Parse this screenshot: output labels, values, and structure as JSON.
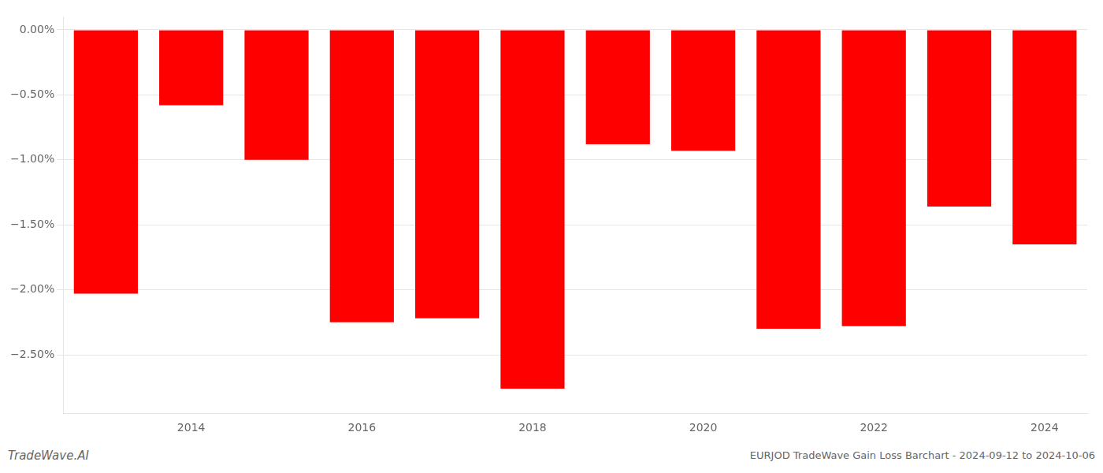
{
  "chart_data": {
    "type": "bar",
    "categories": [
      null,
      "2014",
      null,
      "2016",
      null,
      "2018",
      null,
      "2020",
      null,
      "2022",
      null,
      "2024"
    ],
    "values": [
      -2.03,
      -0.58,
      -1.0,
      -2.25,
      -2.22,
      -2.76,
      -0.88,
      -0.93,
      -2.3,
      -2.28,
      -1.36,
      -1.65
    ],
    "color": "#ff0000",
    "ylim": [
      -2.95,
      0.1
    ],
    "yticks": [
      {
        "value": 0.0,
        "label": "0.00%"
      },
      {
        "value": -0.5,
        "label": "−0.50%"
      },
      {
        "value": -1.0,
        "label": "−1.00%"
      },
      {
        "value": -1.5,
        "label": "−1.50%"
      },
      {
        "value": -2.0,
        "label": "−2.00%"
      },
      {
        "value": -2.5,
        "label": "−2.50%"
      }
    ],
    "grid": true,
    "annotations": [
      "TradeWave.AI",
      "EURJOD TradeWave Gain Loss Barchart - 2024-09-12 to 2024-10-06"
    ]
  }
}
